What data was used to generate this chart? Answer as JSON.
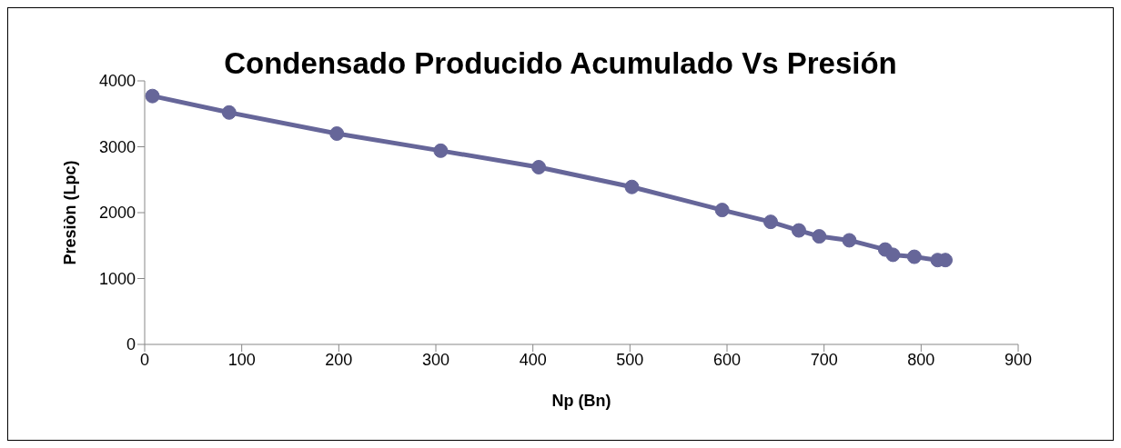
{
  "chart_data": {
    "type": "line",
    "title": "Condensado Producido Acumulado Vs Presión",
    "xlabel": "Np (Bn)",
    "ylabel": "Presiòn (Lpc)",
    "x": [
      8,
      87,
      198,
      305,
      406,
      502,
      595,
      645,
      674,
      695,
      726,
      763,
      771,
      793,
      817,
      825
    ],
    "series": [
      {
        "color": "#666699",
        "values": [
          3770,
          3520,
          3200,
          2940,
          2690,
          2390,
          2040,
          1860,
          1730,
          1640,
          1580,
          1440,
          1360,
          1330,
          1280,
          1280
        ]
      }
    ],
    "xlim": [
      0,
      900
    ],
    "xticks": [
      0,
      100,
      200,
      300,
      400,
      500,
      600,
      700,
      800,
      900
    ],
    "ylim": [
      0,
      4000
    ],
    "yticks": [
      0,
      1000,
      2000,
      3000,
      4000
    ],
    "grid": false,
    "legend": false,
    "marker": "circle",
    "line_style": "solid"
  }
}
